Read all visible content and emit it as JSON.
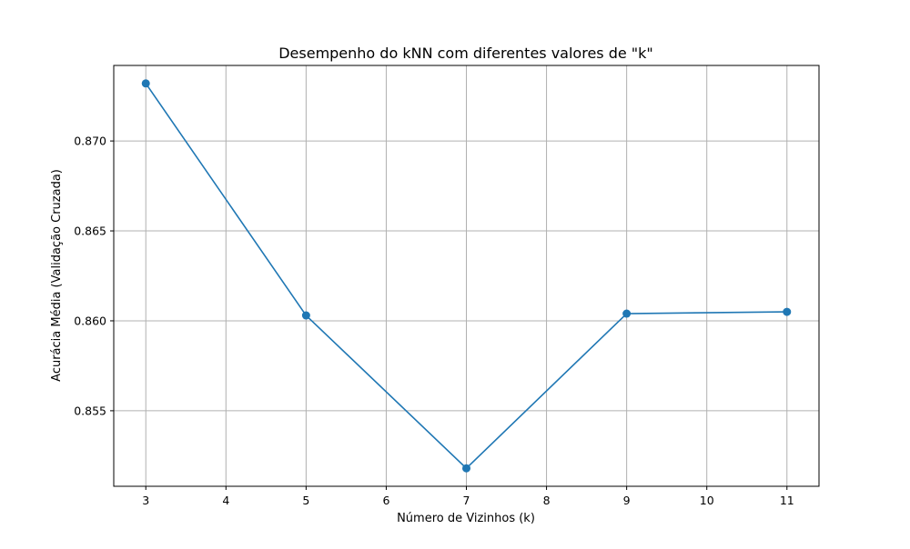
{
  "chart_data": {
    "type": "line",
    "title": "Desempenho do kNN com diferentes valores de \"k\"",
    "xlabel": "Número de Vizinhos (k)",
    "ylabel": "Acurácia Média (Validação Cruzada)",
    "x": [
      3,
      5,
      7,
      9,
      11
    ],
    "series": [
      {
        "values": [
          0.8732,
          0.8603,
          0.8518,
          0.8604,
          0.8605
        ],
        "color": "#1f77b4",
        "marker": "circle"
      }
    ],
    "xlim": [
      2.6,
      11.4
    ],
    "ylim": [
      0.8508,
      0.8742
    ],
    "xticks": [
      3,
      4,
      5,
      6,
      7,
      8,
      9,
      10,
      11
    ],
    "xtick_labels": [
      "3",
      "4",
      "5",
      "6",
      "7",
      "8",
      "9",
      "10",
      "11"
    ],
    "yticks": [
      0.855,
      0.86,
      0.865,
      0.87
    ],
    "ytick_labels": [
      "0.855",
      "0.860",
      "0.865",
      "0.870"
    ],
    "grid": true,
    "legend": false
  }
}
